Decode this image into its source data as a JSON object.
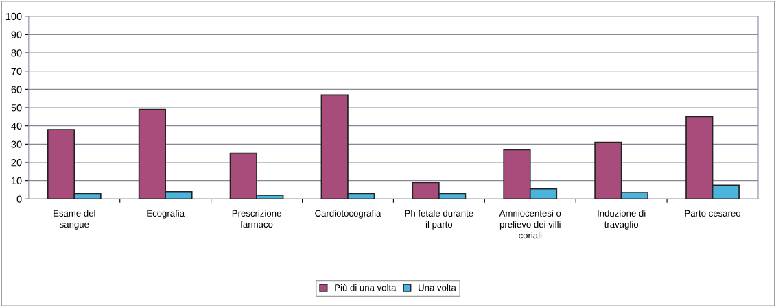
{
  "chart_data": {
    "type": "bar",
    "categories": [
      "Esame del sangue",
      "Ecografia",
      "Prescrizione farmaco",
      "Cardiotocografia",
      "Ph fetale durante il parto",
      "Amniocentesi o prelievo dei villi coriali",
      "Induzione di travaglio",
      "Parto cesareo"
    ],
    "series": [
      {
        "name": "Più di una volta",
        "color": "#a84c7c",
        "values": [
          38,
          49,
          25,
          57,
          9,
          27,
          31,
          45
        ]
      },
      {
        "name": "Una volta",
        "color": "#4cb4dc",
        "values": [
          3,
          4,
          2,
          3,
          3,
          5.5,
          3.5,
          7.5
        ]
      }
    ],
    "ylim": [
      0,
      100
    ],
    "yticks": [
      0,
      10,
      20,
      30,
      40,
      50,
      60,
      70,
      80,
      90,
      100
    ],
    "grid": "y",
    "legend": "bottom"
  }
}
